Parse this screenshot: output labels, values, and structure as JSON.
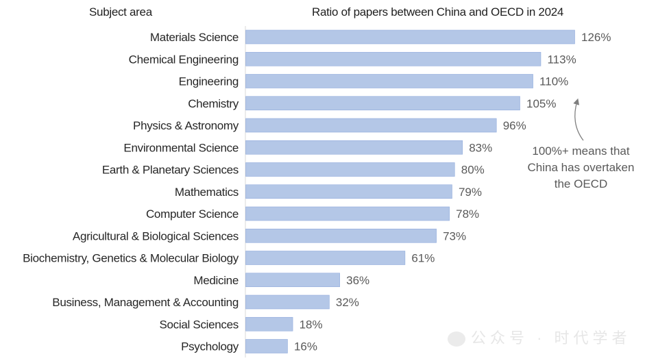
{
  "header": {
    "left": "Subject area",
    "right": "Ratio of papers between China and OECD in 2024"
  },
  "annotation": {
    "text": "100%+ means that China has overtaken the OECD"
  },
  "watermark": {
    "text": "公众号 · 时代学者"
  },
  "colors": {
    "bar": "#b4c7e7",
    "bar_edge": "#8faadc",
    "value_text": "#595959",
    "arrow": "#7f7f7f"
  },
  "chart_data": {
    "type": "bar",
    "orientation": "horizontal",
    "categories": [
      "Materials Science",
      "Chemical Engineering",
      "Engineering",
      "Chemistry",
      "Physics & Astronomy",
      "Environmental Science",
      "Earth & Planetary Sciences",
      "Mathematics",
      "Computer Science",
      "Agricultural & Biological Sciences",
      "Biochemistry, Genetics & Molecular Biology",
      "Medicine",
      "Business, Management & Accounting",
      "Social Sciences",
      "Psychology"
    ],
    "values": [
      126,
      113,
      110,
      105,
      96,
      83,
      80,
      79,
      78,
      73,
      61,
      36,
      32,
      18,
      16
    ],
    "value_labels": [
      "126%",
      "113%",
      "110%",
      "105%",
      "96%",
      "83%",
      "80%",
      "79%",
      "78%",
      "73%",
      "61%",
      "36%",
      "32%",
      "18%",
      "16%"
    ],
    "unit": "%",
    "xlim": [
      0,
      126
    ],
    "grid": false,
    "legend": "none",
    "title": "Ratio of papers between China and OECD in 2024",
    "xlabel": "",
    "ylabel": "Subject area"
  }
}
